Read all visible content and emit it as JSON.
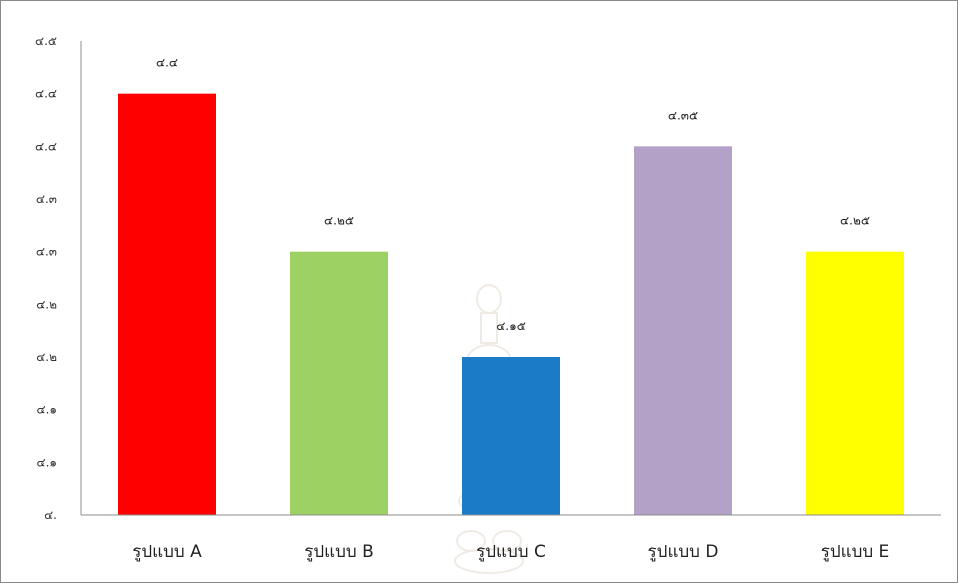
{
  "chart_data": {
    "type": "bar",
    "title": "",
    "xlabel": "",
    "ylabel": "",
    "categories": [
      "รูปแบบ A",
      "รูปแบบ B",
      "รูปแบบ C",
      "รูปแบบ D",
      "รูปแบบ E"
    ],
    "values": [
      4.4,
      4.25,
      4.15,
      4.35,
      4.25
    ],
    "data_labels": [
      "๔.๔",
      "๔.๒๕",
      "๔.๑๕",
      "๔.๓๕",
      "๔.๒๕"
    ],
    "colors": [
      "#ff0000",
      "#9ed163",
      "#1b7bc6",
      "#b3a1c8",
      "#ffff00"
    ],
    "ylim": [
      4.0,
      4.45
    ],
    "y_ticks": [
      4.0,
      4.05,
      4.1,
      4.15,
      4.2,
      4.25,
      4.3,
      4.35,
      4.4,
      4.45
    ],
    "y_tick_labels": [
      "๔.",
      "๔.๑",
      "๔.๑",
      "๔.๒",
      "๔.๒",
      "๔.๓",
      "๔.๓",
      "๔.๔",
      "๔.๔",
      "๔.๕"
    ],
    "grid": false,
    "legend": "none",
    "watermark": "university-emblem"
  }
}
